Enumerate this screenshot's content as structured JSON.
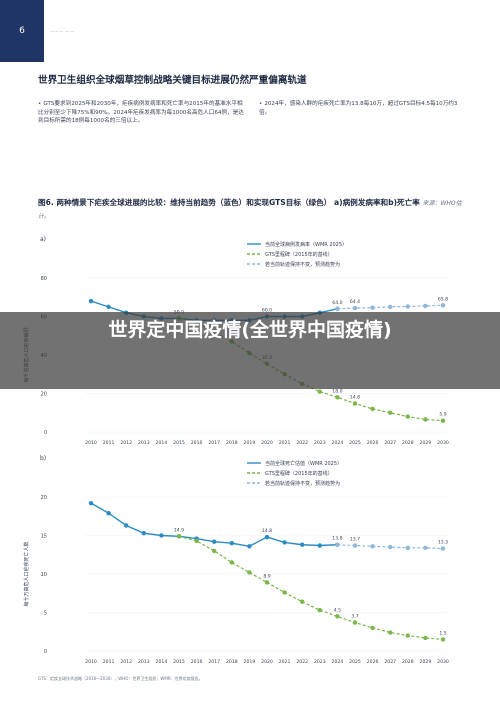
{
  "page": {
    "number": "6",
    "running_head": "———  ——"
  },
  "title": "世界卫生组织全球烟草控制战略关键目标进展仍然严重偏离轨道",
  "bullets": [
    "GTS要求到2025年和2030年，疟疾病例发病率和死亡率与2015年的基准水平相比分别至少下降75%和90%。2024年疟疾发病率为每1000名高危人口64例，是达到目标所需的18例每1000名的三倍以上。",
    "2024年，感染人群的疟疾死亡率为13.8每10万，超过GTS目标4.5每10万约3倍。"
  ],
  "figure": {
    "title": "图6. 两种情景下疟疾全球进展的比较：维持当前趋势（蓝色）和实现GTS目标（绿色） a)病例发病率和b)死亡率",
    "source": "来源：WHO估计。"
  },
  "chart_data": [
    {
      "type": "line",
      "panel": "a)",
      "ylabel": "每千名高危人口疟疾病例",
      "ylim": [
        0,
        80
      ],
      "yticks": [
        0,
        20,
        40,
        60,
        80
      ],
      "x": [
        2010,
        2011,
        2012,
        2013,
        2014,
        2015,
        2016,
        2017,
        2018,
        2019,
        2020,
        2021,
        2022,
        2023,
        2024,
        2025,
        2026,
        2027,
        2028,
        2029,
        2030
      ],
      "legend": [
        "当前全球病例发病率（WMR 2025）",
        "GTS里程碑（2015年的基线）",
        "若当前轨迹保持不变，预测趋势为"
      ],
      "series": [
        {
          "name": "当前全球病例发病率（WMR 2025）",
          "color": "#2b8cc4",
          "style": "solid",
          "x": [
            2010,
            2011,
            2012,
            2013,
            2014,
            2015,
            2016,
            2017,
            2018,
            2019,
            2020,
            2021,
            2022,
            2023,
            2024
          ],
          "values": [
            68,
            65,
            62,
            60,
            59,
            59.0,
            58,
            58,
            58,
            58,
            60.0,
            60,
            60,
            62,
            64.0
          ]
        },
        {
          "name": "GTS里程碑（2015年的基线）",
          "color": "#7ab648",
          "style": "dashed",
          "x": [
            2015,
            2016,
            2017,
            2018,
            2019,
            2020,
            2021,
            2022,
            2023,
            2024,
            2025,
            2026,
            2027,
            2028,
            2029,
            2030
          ],
          "values": [
            59,
            57,
            52,
            47,
            41,
            35.4,
            30,
            25,
            21,
            18.0,
            14.8,
            12,
            10,
            8,
            6.5,
            5.9
          ]
        },
        {
          "name": "若当前轨迹保持不变，预测趋势为",
          "color": "#8fb8d8",
          "style": "dashed",
          "x": [
            2024,
            2025,
            2026,
            2027,
            2028,
            2029,
            2030
          ],
          "values": [
            64.0,
            64.4,
            64.6,
            65,
            65.2,
            65.5,
            65.8
          ]
        }
      ],
      "data_labels": [
        {
          "x": 2015,
          "y": 59.0,
          "text": "59.0"
        },
        {
          "x": 2020,
          "y": 60.0,
          "text": "60.0"
        },
        {
          "x": 2024,
          "y": 64.0,
          "text": "64.0"
        },
        {
          "x": 2025,
          "y": 64.4,
          "text": "64.4"
        },
        {
          "x": 2030,
          "y": 65.8,
          "text": "65.8"
        },
        {
          "x": 2020,
          "y": 35.4,
          "text": "35.4"
        },
        {
          "x": 2024,
          "y": 18.0,
          "text": "18.0"
        },
        {
          "x": 2025,
          "y": 14.8,
          "text": "14.8"
        },
        {
          "x": 2030,
          "y": 5.9,
          "text": "5.9"
        }
      ]
    },
    {
      "type": "line",
      "panel": "b)",
      "ylabel": "每十万高危人口疟疾死亡人数",
      "ylim": [
        0,
        20
      ],
      "yticks": [
        0,
        5,
        10,
        15,
        20
      ],
      "x": [
        2010,
        2011,
        2012,
        2013,
        2014,
        2015,
        2016,
        2017,
        2018,
        2019,
        2020,
        2021,
        2022,
        2023,
        2024,
        2025,
        2026,
        2027,
        2028,
        2029,
        2030
      ],
      "legend": [
        "当前全球死亡估值（WMR 2025）",
        "GTS里程碑（2015年的基线）",
        "若当前轨迹保持不变，预测趋势为"
      ],
      "series": [
        {
          "name": "当前全球死亡估值（WMR 2025）",
          "color": "#2b8cc4",
          "style": "solid",
          "x": [
            2010,
            2011,
            2012,
            2013,
            2014,
            2015,
            2016,
            2017,
            2018,
            2019,
            2020,
            2021,
            2022,
            2023,
            2024
          ],
          "values": [
            19.2,
            17.9,
            16.3,
            15.3,
            15,
            14.9,
            14.6,
            14.2,
            14,
            13.6,
            14.8,
            14.1,
            13.8,
            13.7,
            13.8
          ]
        },
        {
          "name": "GTS里程碑（2015年的基线）",
          "color": "#7ab648",
          "style": "dashed",
          "x": [
            2015,
            2016,
            2017,
            2018,
            2019,
            2020,
            2021,
            2022,
            2023,
            2024,
            2025,
            2026,
            2027,
            2028,
            2029,
            2030
          ],
          "values": [
            14.9,
            14.3,
            13.0,
            11.5,
            10.2,
            8.9,
            7.6,
            6.4,
            5.3,
            4.5,
            3.7,
            3.0,
            2.4,
            2.0,
            1.7,
            1.5
          ]
        },
        {
          "name": "若当前轨迹保持不变，预测趋势为",
          "color": "#8fb8d8",
          "style": "dashed",
          "x": [
            2024,
            2025,
            2026,
            2027,
            2028,
            2029,
            2030
          ],
          "values": [
            13.8,
            13.7,
            13.6,
            13.5,
            13.4,
            13.4,
            13.3
          ]
        }
      ],
      "data_labels": [
        {
          "x": 2015,
          "y": 14.9,
          "text": "14.9"
        },
        {
          "x": 2020,
          "y": 14.8,
          "text": "14.8"
        },
        {
          "x": 2024,
          "y": 13.8,
          "text": "13.8"
        },
        {
          "x": 2025,
          "y": 13.7,
          "text": "13.7"
        },
        {
          "x": 2030,
          "y": 13.3,
          "text": "13.3"
        },
        {
          "x": 2020,
          "y": 8.9,
          "text": "8.9"
        },
        {
          "x": 2024,
          "y": 4.5,
          "text": "4.5"
        },
        {
          "x": 2025,
          "y": 3.7,
          "text": "3.7"
        },
        {
          "x": 2030,
          "y": 1.5,
          "text": "1.5"
        }
      ]
    }
  ],
  "footnote": "GTS：疟疾全球技术战略（2016—2030）；WHO：世界卫生组织；WMR：世界疟疾报告。",
  "overlay": {
    "text": "世界定中国疫情(全世界中国疫情)"
  }
}
